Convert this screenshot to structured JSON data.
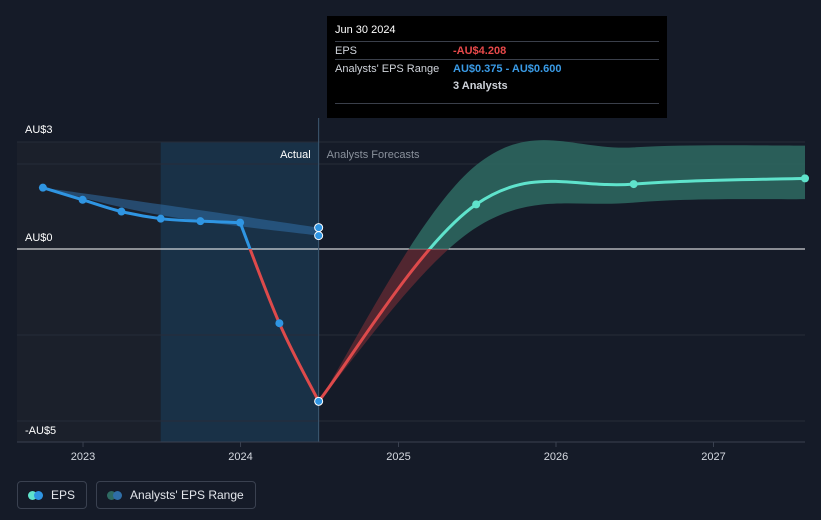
{
  "colors": {
    "background": "#151b28",
    "actual_shade": "#1b3a52",
    "past_shade": "#1b202b",
    "eps_actual": "#2f95e2",
    "eps_drop": "#dd4a4b",
    "eps_forecast": "#5fe3cc",
    "range_actual": "#2f6ea6",
    "range_forecast": "#2e6a62",
    "range_drop": "#7a2e35",
    "grid": "#262c38",
    "zero_line": "#ffffff"
  },
  "tooltip": {
    "date": "Jun 30 2024",
    "eps_label": "EPS",
    "eps_value": "-AU$4.208",
    "range_label": "Analysts' EPS Range",
    "range_value": "AU$0.375 - AU$0.600",
    "analysts": "3 Analysts"
  },
  "legend": {
    "eps_label": "EPS",
    "range_label": "Analysts' EPS Range"
  },
  "chart_data": {
    "type": "line",
    "y_unit": "AU$",
    "y_ticks": [
      {
        "value": 3,
        "label": "AU$3"
      },
      {
        "value": 0,
        "label": "AU$0"
      },
      {
        "value": -5,
        "label": "-AU$5"
      }
    ],
    "ylim": [
      -5.2,
      3.4
    ],
    "xlim": [
      "2022-08-01",
      "2027-08-01"
    ],
    "x_ticks": [
      {
        "date": "2023-01-01",
        "label": "2023"
      },
      {
        "date": "2024-01-01",
        "label": "2024"
      },
      {
        "date": "2025-01-01",
        "label": "2025"
      },
      {
        "date": "2026-01-01",
        "label": "2026"
      },
      {
        "date": "2027-01-01",
        "label": "2027"
      }
    ],
    "regions": {
      "actual_label": "Actual",
      "forecast_label": "Analysts Forecasts",
      "actual_start": "2023-06-30",
      "actual_end": "2024-06-30"
    },
    "eps_actual": [
      {
        "date": "2022-09-30",
        "value": 1.72
      },
      {
        "date": "2022-12-31",
        "value": 1.38
      },
      {
        "date": "2023-03-31",
        "value": 1.05
      },
      {
        "date": "2023-06-30",
        "value": 0.85
      },
      {
        "date": "2023-09-30",
        "value": 0.78
      },
      {
        "date": "2023-12-31",
        "value": 0.74
      },
      {
        "date": "2024-03-31",
        "value": -2.05
      },
      {
        "date": "2024-06-30",
        "value": -4.208
      }
    ],
    "eps_forecast": [
      {
        "date": "2024-06-30",
        "value": -4.208
      },
      {
        "date": "2025-06-30",
        "value": 1.25
      },
      {
        "date": "2026-06-30",
        "value": 1.82
      },
      {
        "date": "2027-08-01",
        "value": 1.98
      }
    ],
    "range_points": [
      {
        "date": "2024-06-30",
        "low": 0.375,
        "high": 0.6
      }
    ],
    "range_actual_band": [
      {
        "date": "2022-09-30",
        "low": 1.72,
        "high": 1.72
      },
      {
        "date": "2023-06-30",
        "low": 0.95,
        "high": 1.25
      },
      {
        "date": "2024-06-30",
        "low": 0.375,
        "high": 0.6
      }
    ],
    "range_forecast_band": [
      {
        "date": "2024-06-30",
        "low": -4.208,
        "high": -4.208
      },
      {
        "date": "2025-06-30",
        "low": 0.6,
        "high": 2.35
      },
      {
        "date": "2026-06-30",
        "low": 1.3,
        "high": 2.85
      },
      {
        "date": "2027-08-01",
        "low": 1.4,
        "high": 2.9
      }
    ]
  }
}
